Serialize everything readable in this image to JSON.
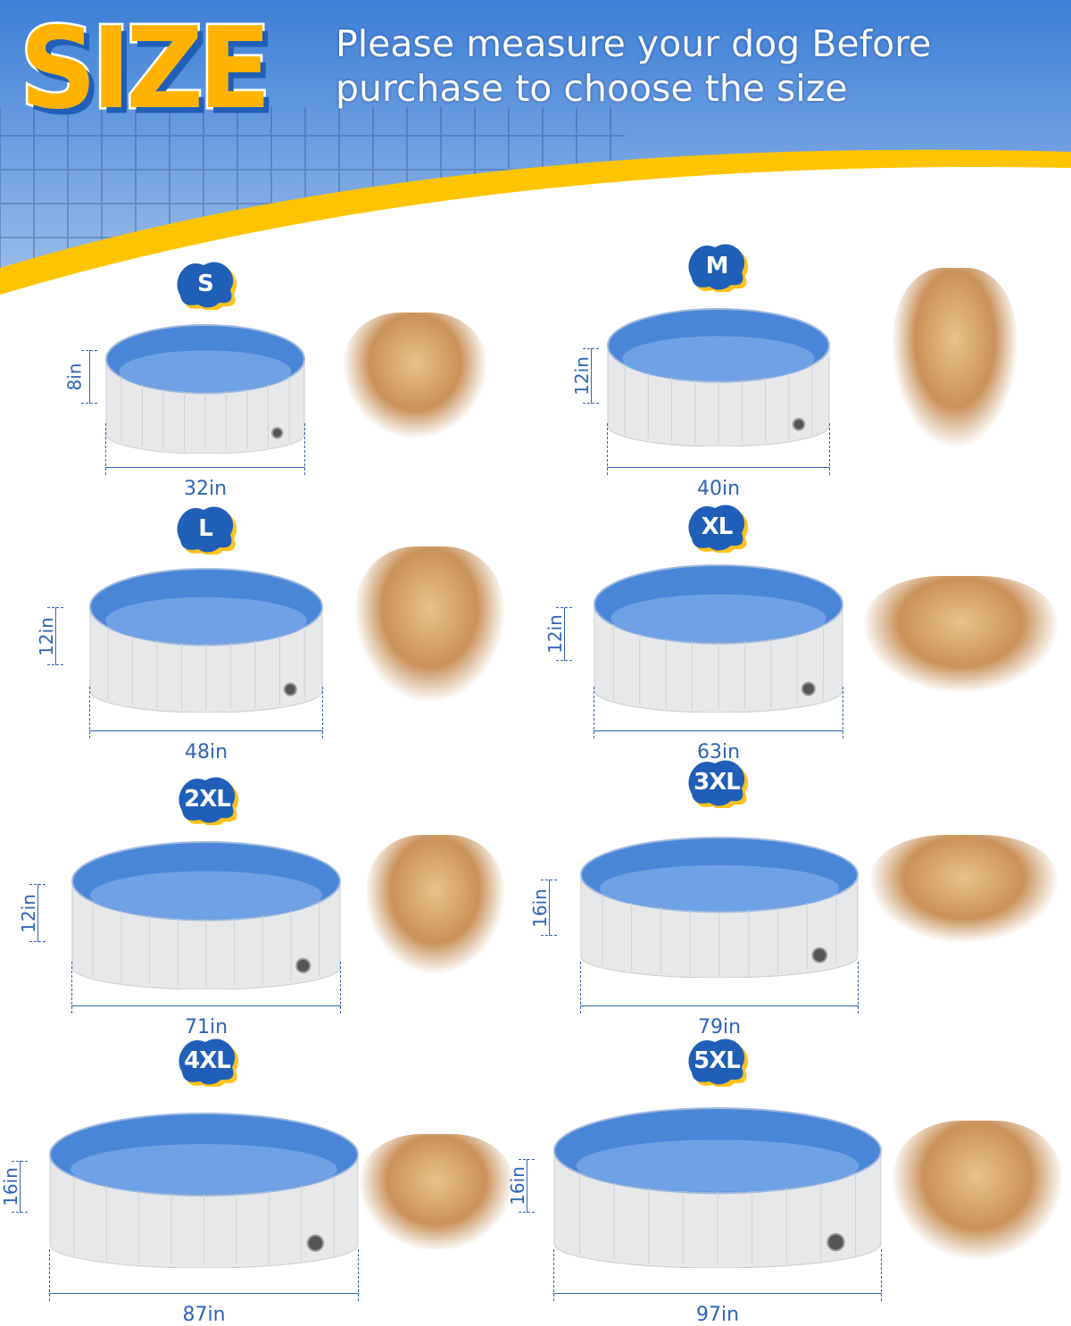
{
  "header": {
    "title": "SIZE",
    "subtitle_line1": "Please measure your dog Before",
    "subtitle_line2": "purchase to choose the size"
  },
  "colors": {
    "badge": "#1f5fb8",
    "badge_shadow": "#ffc21a",
    "title": "#ffb300",
    "band": "#ffc400",
    "pool_inner": "#4a86d8",
    "pool_floor": "#6fa2e4",
    "pool_wall": "#e6e8ea",
    "dimension": "#2f63b6"
  },
  "sizes": [
    {
      "label": "S",
      "height": "8in",
      "diameter": "32in",
      "photo": "corgi-dog"
    },
    {
      "label": "M",
      "height": "12in",
      "diameter": "40in",
      "photo": "husky-dog"
    },
    {
      "label": "L",
      "height": "12in",
      "diameter": "48in",
      "photo": "girl-with-puppy"
    },
    {
      "label": "XL",
      "height": "12in",
      "diameter": "63in",
      "photo": "children-with-golden-retriever"
    },
    {
      "label": "2XL",
      "height": "12in",
      "diameter": "71in",
      "photo": "woman-boy-with-dog"
    },
    {
      "label": "3XL",
      "height": "16in",
      "diameter": "79in",
      "photo": "family-with-puppy"
    },
    {
      "label": "4XL",
      "height": "16in",
      "diameter": "87in",
      "photo": "family-with-golden-retriever"
    },
    {
      "label": "5XL",
      "height": "16in",
      "diameter": "97in",
      "photo": "family-with-two-dogs"
    }
  ]
}
